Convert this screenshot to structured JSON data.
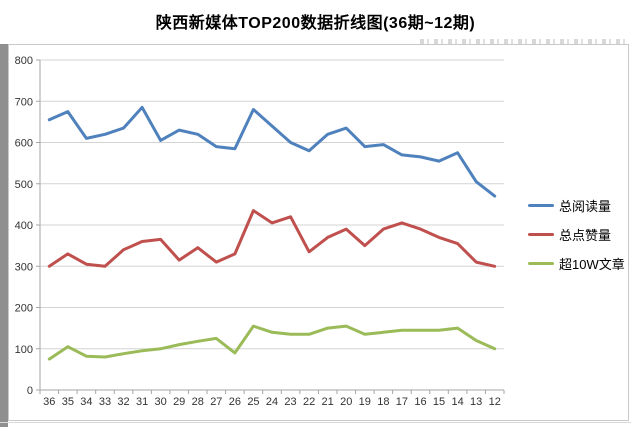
{
  "title": "陕西新媒体TOP200数据折线图(36期~12期)",
  "chart_data": {
    "type": "line",
    "title": "陕西新媒体TOP200数据折线图(36期~12期)",
    "categories": [
      "36",
      "35",
      "34",
      "33",
      "32",
      "31",
      "30",
      "29",
      "28",
      "27",
      "26",
      "25",
      "24",
      "23",
      "22",
      "21",
      "20",
      "19",
      "18",
      "17",
      "16",
      "15",
      "14",
      "13",
      "12"
    ],
    "series": [
      {
        "name": "总阅读量",
        "color": "#4f81bd",
        "values": [
          655,
          675,
          610,
          620,
          635,
          685,
          605,
          630,
          620,
          590,
          585,
          680,
          640,
          600,
          580,
          620,
          635,
          590,
          595,
          570,
          565,
          555,
          575,
          505,
          470
        ]
      },
      {
        "name": "总点赞量",
        "color": "#c0504d",
        "values": [
          300,
          330,
          305,
          300,
          340,
          360,
          365,
          315,
          345,
          310,
          330,
          435,
          405,
          420,
          335,
          370,
          390,
          350,
          390,
          405,
          390,
          370,
          355,
          310,
          300
        ]
      },
      {
        "name": "超10W文章",
        "color": "#9bbb59",
        "values": [
          75,
          105,
          82,
          80,
          88,
          95,
          100,
          110,
          118,
          125,
          90,
          155,
          140,
          135,
          135,
          150,
          155,
          135,
          140,
          145,
          145,
          145,
          150,
          120,
          100
        ]
      }
    ],
    "xlabel": "",
    "ylabel": "",
    "ylim": [
      0,
      800
    ],
    "ytick_interval": 100,
    "yticks": [
      0,
      100,
      200,
      300,
      400,
      500,
      600,
      700,
      800
    ],
    "grid": true,
    "legend_position": "right"
  },
  "colors": {
    "gridline": "#d3d3d3",
    "axis": "#a6a6a6",
    "tick_label": "#333333",
    "frame_border": "#c9c9c9",
    "left_strip": "#8f8f8f"
  }
}
